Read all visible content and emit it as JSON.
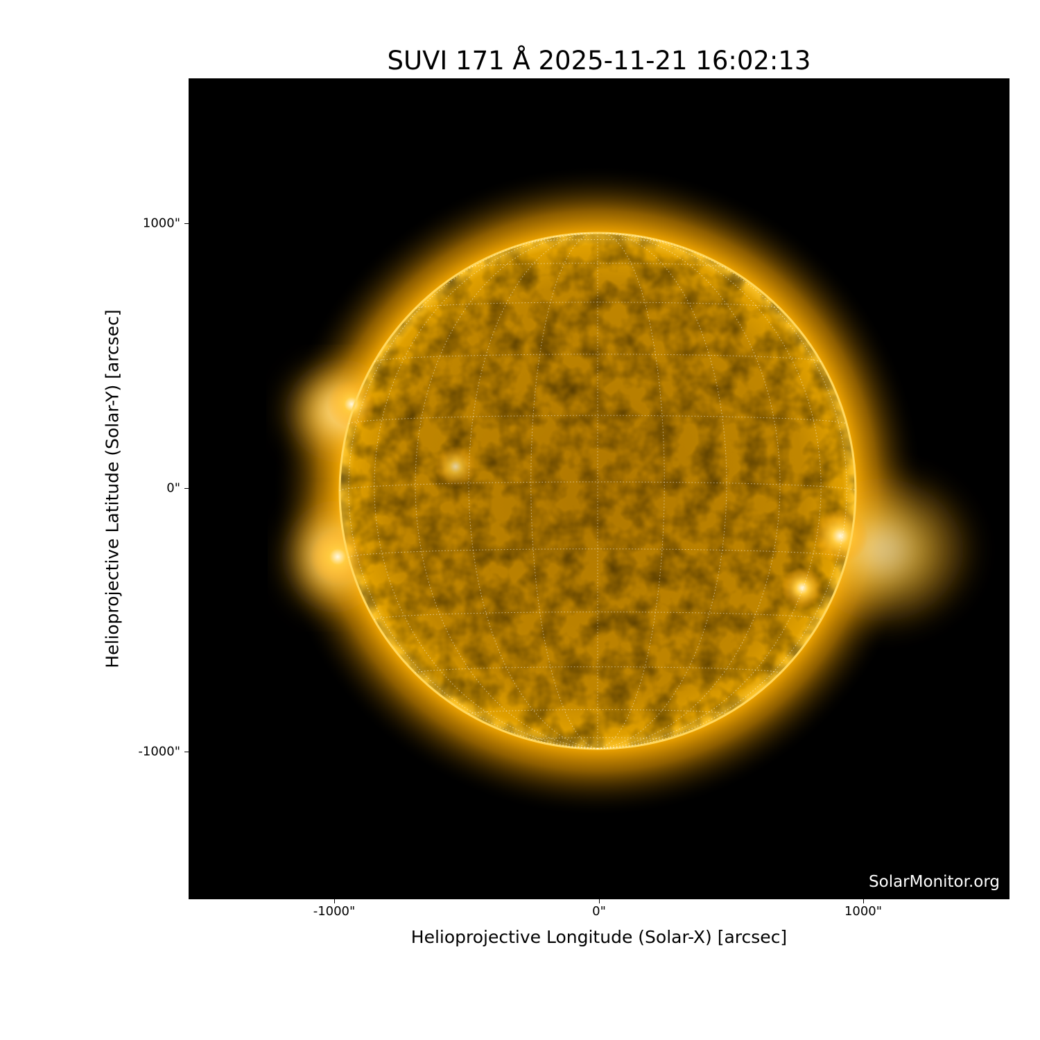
{
  "title": "SUVI 171 Å 2025-11-21 16:02:13",
  "watermark": "SolarMonitor.org",
  "xaxis": {
    "label": "Helioprojective Longitude (Solar-X) [arcsec]",
    "ticks": [
      "-1000\"",
      "0\"",
      "1000\""
    ],
    "tick_values": [
      -1000,
      0,
      1000
    ]
  },
  "yaxis": {
    "label": "Helioprojective Latitude (Solar-Y) [arcsec]",
    "ticks": [
      "1000\"",
      "0\"",
      "-1000\""
    ],
    "tick_values": [
      1000,
      0,
      -1000
    ]
  },
  "image": {
    "instrument": "SUVI",
    "wavelength": "171 Å",
    "colormap_color": "#f5a800",
    "grid_color": "#ffffff",
    "grid_spacing_deg": 15,
    "extent_arcsec": [
      -1550,
      1550
    ]
  }
}
